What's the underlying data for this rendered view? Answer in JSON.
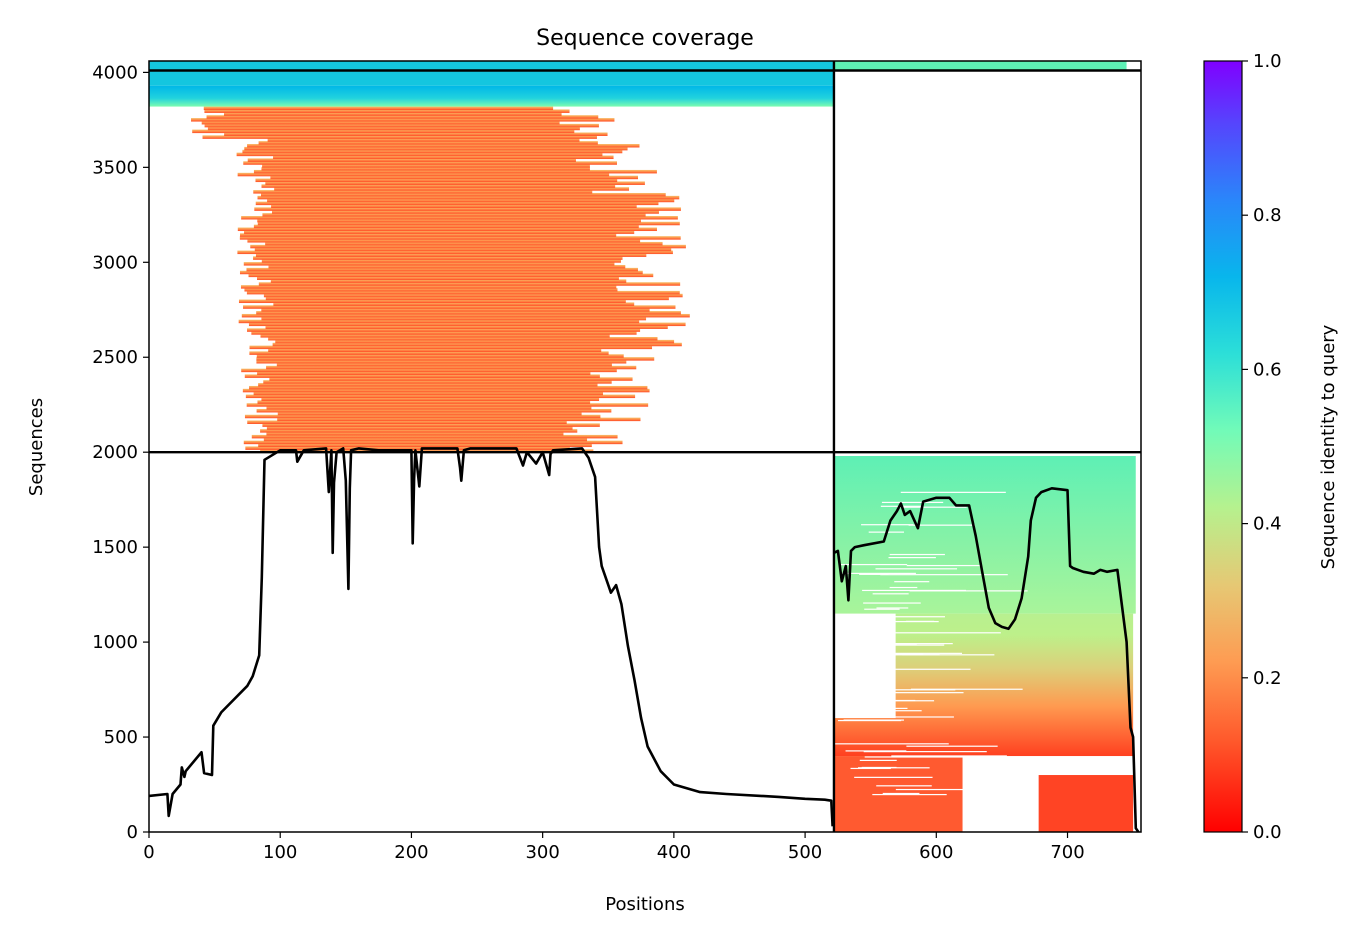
{
  "chart_data": {
    "type": "heatmap",
    "title": "Sequence coverage",
    "xlabel": "Positions",
    "ylabel": "Sequences",
    "xlim": [
      0,
      756
    ],
    "ylim": [
      0,
      4060
    ],
    "x_ticks": [
      "0",
      "100",
      "200",
      "300",
      "400",
      "500",
      "600",
      "700"
    ],
    "y_ticks": [
      "0",
      "500",
      "1000",
      "1500",
      "2000",
      "2500",
      "3000",
      "3500",
      "4000"
    ],
    "colorbar": {
      "label": "Sequence identity to query",
      "range": [
        0,
        1
      ],
      "ticks": [
        "0.0",
        "0.2",
        "0.4",
        "0.6",
        "0.8",
        "1.0"
      ],
      "colormap": "rainbow_r"
    },
    "boundaries": {
      "vertical_x": 522,
      "horizontal_y": [
        2000,
        4010
      ]
    },
    "blocks": [
      {
        "name": "block-1",
        "x_range": [
          0,
          522
        ],
        "y_range": [
          0,
          2000
        ],
        "color": "#ffffff"
      },
      {
        "name": "block-2",
        "x_range": [
          522,
          756
        ],
        "y_range": [
          2000,
          4010
        ],
        "color": "#ffffff"
      }
    ],
    "coverage_line": {
      "x": [
        0,
        14,
        15,
        18,
        24,
        25,
        27,
        28,
        40,
        42,
        48,
        49,
        55,
        75,
        79,
        84,
        86,
        88,
        100,
        112,
        113,
        118,
        135,
        137,
        139,
        140,
        141,
        143,
        148,
        150,
        152,
        153,
        154,
        160,
        175,
        200,
        201,
        202,
        203,
        206,
        208,
        235,
        237,
        238,
        240,
        245,
        280,
        285,
        288,
        295,
        300,
        305,
        306,
        308,
        330,
        335,
        340,
        343,
        345,
        350,
        352,
        356,
        360,
        365,
        370,
        375,
        380,
        390,
        400,
        420,
        440,
        480,
        500,
        515,
        520,
        521
      ],
      "y": [
        190,
        200,
        85,
        200,
        250,
        340,
        290,
        320,
        420,
        310,
        300,
        560,
        630,
        770,
        820,
        930,
        1340,
        1960,
        2010,
        2010,
        1950,
        2010,
        2020,
        1790,
        2010,
        1470,
        1840,
        2000,
        2020,
        1850,
        1280,
        1810,
        2010,
        2020,
        2010,
        2010,
        1520,
        1860,
        2010,
        1820,
        2020,
        2020,
        1920,
        1850,
        2010,
        2020,
        2020,
        1930,
        2000,
        1940,
        2000,
        1880,
        1990,
        2010,
        2020,
        1970,
        1870,
        1500,
        1400,
        1300,
        1260,
        1300,
        1200,
        980,
        800,
        600,
        450,
        320,
        250,
        210,
        200,
        185,
        175,
        170,
        165,
        30
      ]
    },
    "coverage_line_2": {
      "x": [
        522,
        525,
        528,
        531,
        533,
        535,
        538,
        545,
        560,
        565,
        570,
        573,
        576,
        580,
        586,
        590,
        600,
        610,
        615,
        625,
        630,
        635,
        640,
        645,
        650,
        655,
        660,
        665,
        670,
        672,
        676,
        680,
        688,
        700,
        702,
        704,
        712,
        720,
        725,
        730,
        738,
        745,
        748,
        750,
        752,
        754
      ],
      "y": [
        1470,
        1480,
        1320,
        1400,
        1220,
        1480,
        1500,
        1510,
        1530,
        1640,
        1690,
        1730,
        1670,
        1690,
        1600,
        1740,
        1760,
        1760,
        1720,
        1720,
        1560,
        1370,
        1180,
        1100,
        1080,
        1070,
        1120,
        1230,
        1450,
        1640,
        1760,
        1790,
        1810,
        1800,
        1400,
        1390,
        1370,
        1360,
        1380,
        1370,
        1380,
        1000,
        550,
        500,
        20,
        0
      ]
    }
  }
}
